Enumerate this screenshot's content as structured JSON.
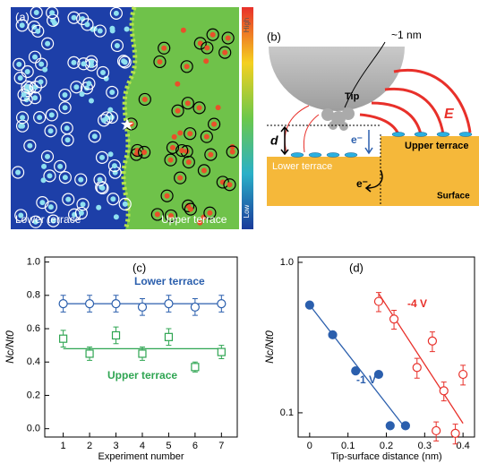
{
  "panel_a": {
    "label": "(a)",
    "colorbar_high": "High",
    "colorbar_low": "Low",
    "lower": "Lower terrace",
    "upper": "Upper terrace"
  },
  "panel_b": {
    "label": "(b)",
    "size": "~1 nm",
    "tip": "Tip",
    "field": "E",
    "distance": "d",
    "electron_tip": "e⁻",
    "electron_surface": "e⁻",
    "upper": "Upper terrace",
    "lower": "Lower terrace",
    "surface": "Surface"
  },
  "chart_data": [
    {
      "type": "scatter",
      "panel_label": "(c)",
      "xlabel": "Experiment number",
      "ylabel": "Nc/Nt0",
      "xlim": [
        0.3,
        7.6
      ],
      "ylim": [
        -0.05,
        1.03
      ],
      "ylog": false,
      "xticks": [
        1,
        2,
        3,
        4,
        5,
        6,
        7
      ],
      "yticks": [
        {
          "value": 0,
          "label": "0.0"
        },
        0.2,
        0.4,
        0.6,
        0.8,
        {
          "value": 1,
          "label": "1.0"
        }
      ],
      "series": [
        {
          "name": "Lower terrace",
          "color": "#2b5fad",
          "marker": "circle",
          "filled": false,
          "x": [
            1,
            2,
            3,
            4,
            5,
            6,
            7
          ],
          "values": [
            0.75,
            0.75,
            0.75,
            0.73,
            0.75,
            0.73,
            0.75
          ],
          "errors": [
            0.05,
            0.05,
            0.05,
            0.05,
            0.05,
            0.05,
            0.05
          ],
          "fit": {
            "x": [
              1,
              7
            ],
            "y": [
              0.75,
              0.75
            ]
          }
        },
        {
          "name": "Upper terrace",
          "color": "#2fa552",
          "marker": "square",
          "filled": false,
          "x": [
            1,
            2,
            3,
            4,
            5,
            6,
            7
          ],
          "values": [
            0.54,
            0.45,
            0.56,
            0.45,
            0.55,
            0.37,
            0.46
          ],
          "errors": [
            0.05,
            0.04,
            0.05,
            0.04,
            0.05,
            0.03,
            0.04
          ],
          "fit": {
            "x": [
              1,
              7
            ],
            "y": [
              0.48,
              0.48
            ]
          }
        }
      ]
    },
    {
      "type": "scatter",
      "panel_label": "(d)",
      "xlabel": "Tip-surface distance (nm)",
      "ylabel": "Nc/Nt0",
      "xlim": [
        -0.03,
        0.43
      ],
      "ylim": [
        0.069,
        1.085
      ],
      "ylog": true,
      "xticks": [
        0,
        0.1,
        0.2,
        0.3,
        0.4
      ],
      "yticks": [
        0.1,
        {
          "value": 1,
          "label": "1.0"
        }
      ],
      "series": [
        {
          "name": "-1 V",
          "color": "#2b5fad",
          "marker": "circle",
          "filled": true,
          "x": [
            0,
            0.06,
            0.12,
            0.18,
            0.21,
            0.25
          ],
          "values": [
            0.52,
            0.33,
            0.19,
            0.18,
            0.082,
            0.082
          ],
          "errors": null,
          "fit": {
            "x": [
              0,
              0.24
            ],
            "y": [
              0.52,
              0.085
            ]
          }
        },
        {
          "name": "-4 V",
          "color": "#e8302a",
          "marker": "circle",
          "filled": false,
          "x": [
            0.18,
            0.22,
            0.28,
            0.32,
            0.33,
            0.35,
            0.38,
            0.4
          ],
          "values": [
            0.55,
            0.42,
            0.2,
            0.3,
            0.076,
            0.14,
            0.073,
            0.18
          ],
          "errors": [
            0.08,
            0.06,
            0.03,
            0.045,
            0.011,
            0.02,
            0.011,
            0.027
          ],
          "fit": {
            "x": [
              0.18,
              0.4
            ],
            "y": [
              0.62,
              0.085
            ]
          }
        }
      ]
    }
  ]
}
